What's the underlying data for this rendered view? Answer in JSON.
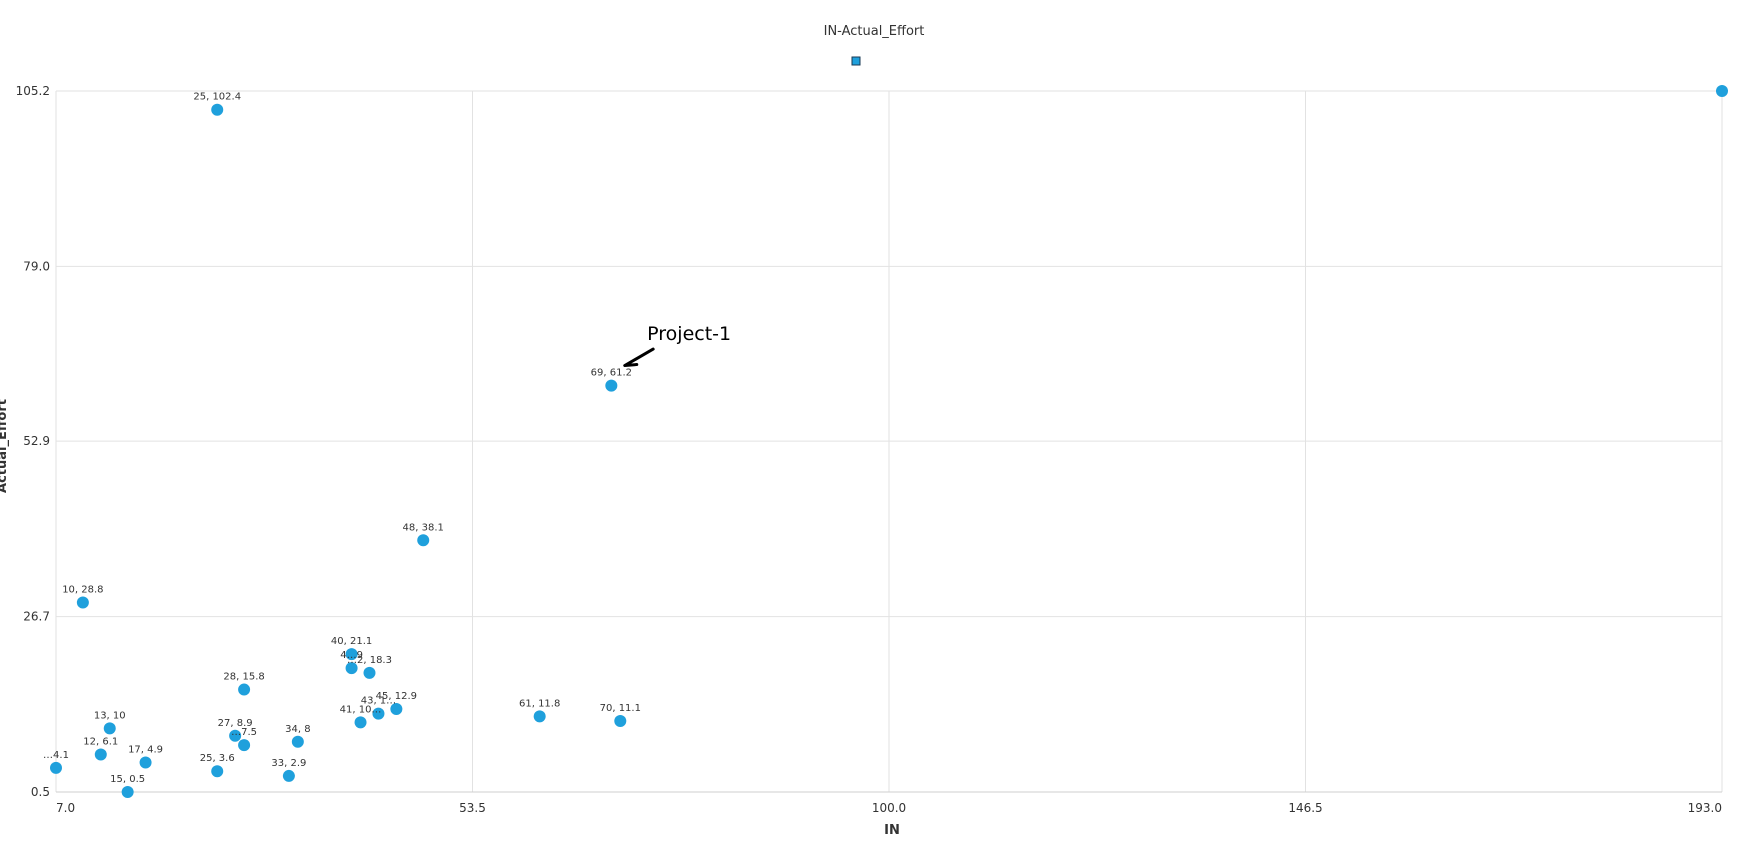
{
  "chart_data": {
    "type": "scatter",
    "title": "IN-Actual_Effort",
    "xlabel": "IN",
    "ylabel": "Actual_Effort",
    "xlim": [
      7.0,
      193.0
    ],
    "ylim": [
      0.5,
      105.2
    ],
    "x_ticks": [
      "7.0",
      "53.5",
      "100.0",
      "146.5",
      "193.0"
    ],
    "y_ticks": [
      "0.5",
      "26.7",
      "52.9",
      "79.0",
      "105.2"
    ],
    "grid": true,
    "legend": "top-center",
    "point_color": "#1fa0dc",
    "series": [
      {
        "points": [
          {
            "x": 25,
            "y": 102.4,
            "label": "25, 102.4"
          },
          {
            "x": 69,
            "y": 61.2,
            "label": "69, 61.2"
          },
          {
            "x": 48,
            "y": 38.1,
            "label": "48, 38.1"
          },
          {
            "x": 10,
            "y": 28.8,
            "label": "10, 28.8"
          },
          {
            "x": 40,
            "y": 21.1,
            "label": "40, 21.1"
          },
          {
            "x": 40,
            "y": 19.0,
            "label": "4…9"
          },
          {
            "x": 42,
            "y": 18.3,
            "label": "…2, 18.3"
          },
          {
            "x": 28,
            "y": 15.8,
            "label": "28, 15.8"
          },
          {
            "x": 45,
            "y": 12.9,
            "label": "45, 12.9"
          },
          {
            "x": 43,
            "y": 12.2,
            "label": "43, 1…"
          },
          {
            "x": 41,
            "y": 10.9,
            "label": "41, 10…"
          },
          {
            "x": 61,
            "y": 11.8,
            "label": "61, 11.8"
          },
          {
            "x": 70,
            "y": 11.1,
            "label": "70, 11.1"
          },
          {
            "x": 13,
            "y": 10,
            "label": "13, 10"
          },
          {
            "x": 27,
            "y": 8.9,
            "label": "27, 8.9"
          },
          {
            "x": 28,
            "y": 7.5,
            "label": "…7.5"
          },
          {
            "x": 34,
            "y": 8,
            "label": "34, 8"
          },
          {
            "x": 12,
            "y": 6.1,
            "label": "12, 6.1"
          },
          {
            "x": 17,
            "y": 4.9,
            "label": "17, 4.9"
          },
          {
            "x": 7,
            "y": 4.1,
            "label": "…4.1"
          },
          {
            "x": 25,
            "y": 3.6,
            "label": "25, 3.6"
          },
          {
            "x": 33,
            "y": 2.9,
            "label": "33, 2.9"
          },
          {
            "x": 15,
            "y": 0.5,
            "label": "15, 0.5"
          },
          {
            "x": 193,
            "y": 105.2,
            "label": ""
          }
        ]
      }
    ],
    "annotations": [
      {
        "text": "Project-1",
        "x": 73,
        "y": 68,
        "target_x": 70.5,
        "target_y": 64.2
      }
    ]
  }
}
